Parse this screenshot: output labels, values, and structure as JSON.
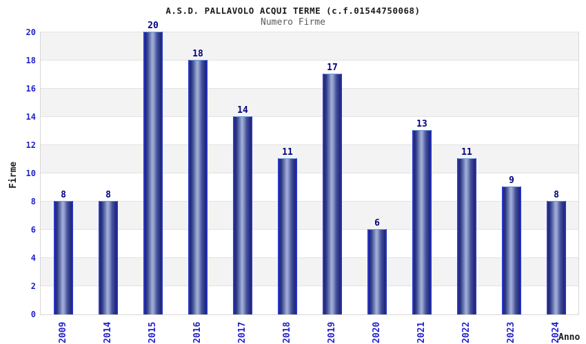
{
  "chart_data": {
    "type": "bar",
    "title": "A.S.D. PALLAVOLO ACQUI TERME (c.f.01544750068)",
    "subtitle": "Numero Firme",
    "xlabel": "Anno",
    "ylabel": "Firme",
    "categories": [
      "2009",
      "2014",
      "2015",
      "2016",
      "2017",
      "2018",
      "2019",
      "2020",
      "2021",
      "2022",
      "2023",
      "2024"
    ],
    "values": [
      8,
      8,
      20,
      18,
      14,
      11,
      17,
      6,
      13,
      11,
      9,
      8
    ],
    "ylim": [
      0,
      20
    ],
    "ytick_step": 2,
    "yticks": [
      0,
      2,
      4,
      6,
      8,
      10,
      12,
      14,
      16,
      18,
      20
    ],
    "grid": "horizontal-bands-alternating",
    "legend": "none",
    "colors": {
      "bar_dark": "#1d2277",
      "bar_light": "#a2b0da",
      "bar_border": "#2b3ac9",
      "bar_top_border": "#6d9ad8",
      "tick_label": "#2222cc",
      "value_label": "#000080",
      "band_gray": "#f3f3f3",
      "band_line": "#e2e2e2",
      "title_color": "#1a1a1a",
      "subtitle_color": "#5a5a5a"
    }
  }
}
